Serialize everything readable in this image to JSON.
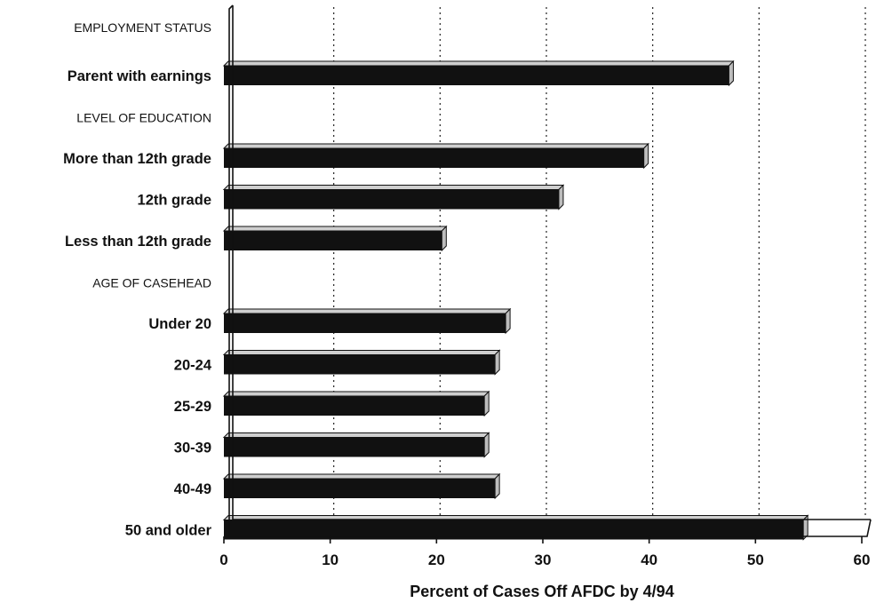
{
  "chart_data": {
    "type": "bar",
    "orientation": "horizontal",
    "title": "",
    "xlabel": "Percent of Cases Off AFDC by 4/94",
    "ylabel": "",
    "xlim": [
      0,
      60
    ],
    "x_ticks": [
      0,
      10,
      20,
      30,
      40,
      50,
      60
    ],
    "grid": "vertical dotted lines at each tick",
    "legend": "none",
    "bar_color": "#111111",
    "rows": [
      {
        "label": "EMPLOYMENT STATUS",
        "kind": "group_header",
        "value": null
      },
      {
        "label": "Parent with earnings",
        "kind": "bar",
        "value": 47.5
      },
      {
        "label": "LEVEL OF EDUCATION",
        "kind": "group_header",
        "value": null
      },
      {
        "label": "More than 12th grade",
        "kind": "bar",
        "value": 39.5
      },
      {
        "label": "12th grade",
        "kind": "bar",
        "value": 31.5
      },
      {
        "label": "Less than 12th grade",
        "kind": "bar",
        "value": 20.5
      },
      {
        "label": "AGE OF CASEHEAD",
        "kind": "group_header",
        "value": null
      },
      {
        "label": "Under 20",
        "kind": "bar",
        "value": 26.5
      },
      {
        "label": "20-24",
        "kind": "bar",
        "value": 25.5
      },
      {
        "label": "25-29",
        "kind": "bar",
        "value": 24.5
      },
      {
        "label": "30-39",
        "kind": "bar",
        "value": 24.5
      },
      {
        "label": "40-49",
        "kind": "bar",
        "value": 25.5
      },
      {
        "label": "50 and older",
        "kind": "bar",
        "value": 54.5
      }
    ]
  }
}
